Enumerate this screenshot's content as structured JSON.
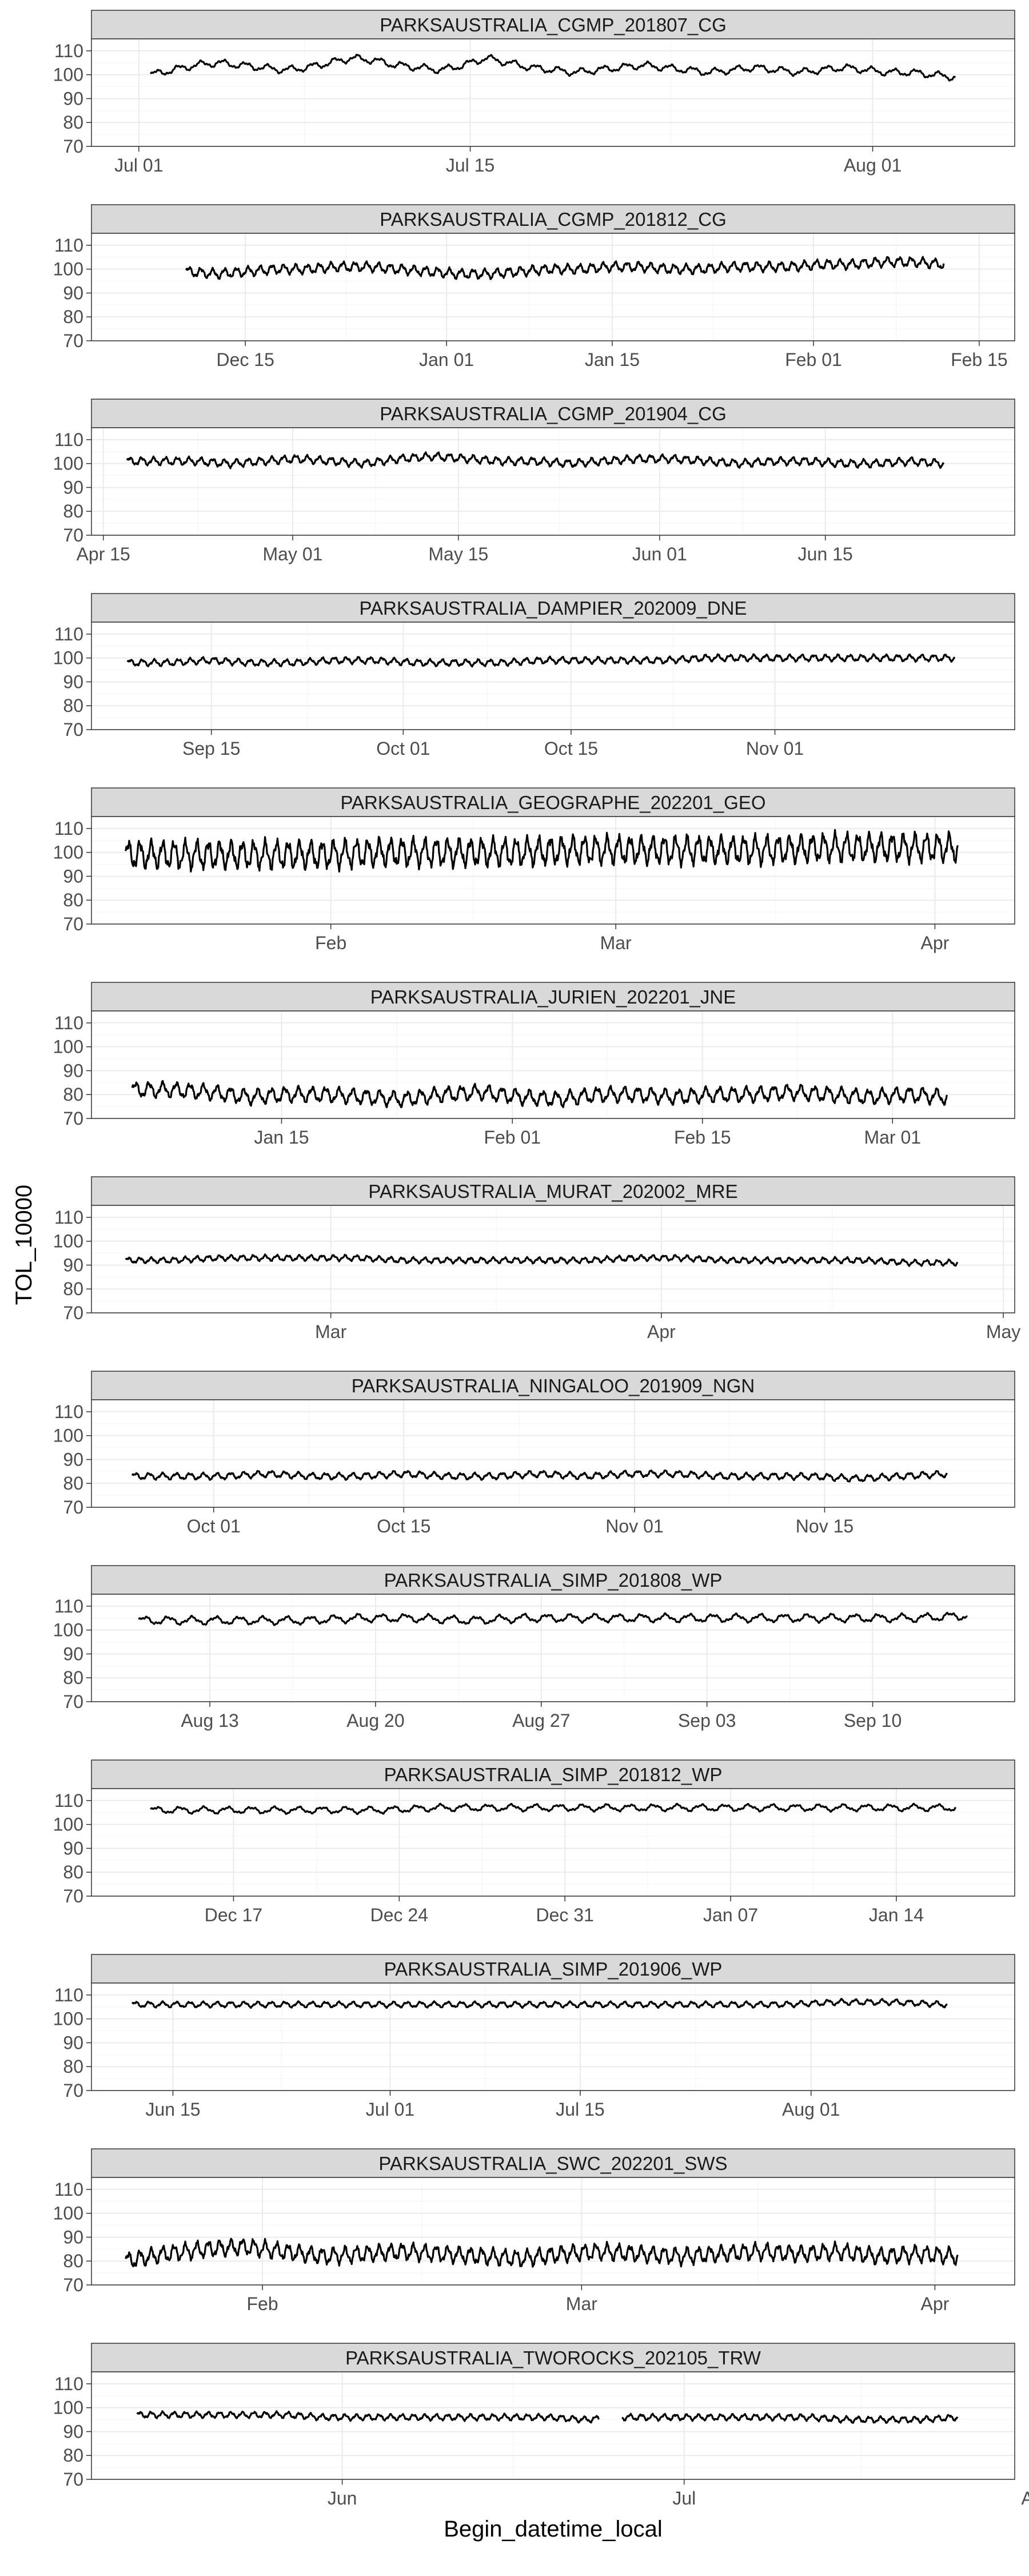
{
  "figure": {
    "ylabel": "TOL_10000",
    "xlabel": "Begin_datetime_local",
    "ylim": [
      70,
      115
    ],
    "yticks": [
      70,
      80,
      90,
      100,
      110
    ],
    "line_color": "#000000",
    "strip_fill": "#d9d9d9",
    "panel_border": "#333333",
    "grid_major": "#ebebeb",
    "grid_minor": "#f5f5f5",
    "tick_label_color": "#4d4d4d"
  },
  "chart_data": [
    {
      "type": "line",
      "title": "PARKSAUSTRALIA_CGMP_201807_CG",
      "xlim": [
        0,
        39
      ],
      "x_start": 2.5,
      "x_end": 36.5,
      "xticks": [
        {
          "x": 2,
          "label": "Jul 01"
        },
        {
          "x": 16,
          "label": "Jul 15"
        },
        {
          "x": 33,
          "label": "Aug 01"
        }
      ],
      "y": [
        100,
        102,
        104,
        105,
        104,
        103,
        102,
        103,
        105,
        107,
        106,
        104,
        103,
        102,
        104,
        107,
        105,
        103,
        102,
        101,
        102,
        103,
        104,
        103,
        102,
        101,
        102,
        103,
        102,
        101,
        102,
        103,
        102,
        101,
        101,
        100,
        99
      ],
      "amp": 1.6,
      "cycles": 36
    },
    {
      "type": "line",
      "title": "PARKSAUSTRALIA_CGMP_201812_CG",
      "xlim": [
        0,
        78
      ],
      "x_start": 8,
      "x_end": 72,
      "xticks": [
        {
          "x": 13,
          "label": "Dec 15"
        },
        {
          "x": 30,
          "label": "Jan 01"
        },
        {
          "x": 44,
          "label": "Jan 15"
        },
        {
          "x": 61,
          "label": "Feb 01"
        },
        {
          "x": 75,
          "label": "Feb 15"
        }
      ],
      "y": [
        99,
        98,
        99,
        100,
        100,
        101,
        101,
        100,
        99,
        98,
        98,
        99,
        100,
        100,
        101,
        101,
        100,
        100,
        101,
        101,
        101,
        102,
        102,
        103,
        103,
        102
      ],
      "amp": 2.2,
      "cycles": 64
    },
    {
      "type": "line",
      "title": "PARKSAUSTRALIA_CGMP_201904_CG",
      "xlim": [
        0,
        78
      ],
      "x_start": 3,
      "x_end": 72,
      "xticks": [
        {
          "x": 1,
          "label": "Apr 15"
        },
        {
          "x": 17,
          "label": "May 01"
        },
        {
          "x": 31,
          "label": "May 15"
        },
        {
          "x": 48,
          "label": "Jun 01"
        },
        {
          "x": 62,
          "label": "Jun 15"
        }
      ],
      "y": [
        101,
        101,
        101,
        100,
        101,
        102,
        101,
        100,
        102,
        103,
        102,
        101,
        101,
        100,
        101,
        102,
        102,
        101,
        100,
        101,
        101,
        100,
        100,
        101,
        100
      ],
      "amp": 1.8,
      "cycles": 69
    },
    {
      "type": "line",
      "title": "PARKSAUSTRALIA_DAMPIER_202009_DNE",
      "xlim": [
        0,
        77
      ],
      "x_start": 3,
      "x_end": 72,
      "xticks": [
        {
          "x": 10,
          "label": "Sep 15"
        },
        {
          "x": 26,
          "label": "Oct 01"
        },
        {
          "x": 40,
          "label": "Oct 15"
        },
        {
          "x": 57,
          "label": "Nov 01"
        }
      ],
      "y": [
        98,
        98,
        99,
        98,
        98,
        99,
        99,
        98,
        98,
        98,
        99,
        99,
        99,
        99,
        100,
        100,
        100,
        100,
        100,
        100,
        100
      ],
      "amp": 1.5,
      "cycles": 69
    },
    {
      "type": "line",
      "title": "PARKSAUSTRALIA_GEOGRAPHE_202201_GEO",
      "xlim": [
        0,
        81
      ],
      "x_start": 3,
      "x_end": 76,
      "xticks": [
        {
          "x": 21,
          "label": "Feb"
        },
        {
          "x": 46,
          "label": "Mar"
        },
        {
          "x": 74,
          "label": "Apr"
        }
      ],
      "y": [
        99,
        99,
        99,
        99,
        100,
        100,
        100,
        101,
        101,
        101,
        101,
        102,
        102,
        102
      ],
      "amp": 6.5,
      "cycles": 73
    },
    {
      "type": "line",
      "title": "PARKSAUSTRALIA_JURIEN_202201_JNE",
      "xlim": [
        0,
        68
      ],
      "x_start": 3,
      "x_end": 63,
      "xticks": [
        {
          "x": 14,
          "label": "Jan 15"
        },
        {
          "x": 31,
          "label": "Feb 01"
        },
        {
          "x": 45,
          "label": "Feb 15"
        },
        {
          "x": 59,
          "label": "Mar 01"
        }
      ],
      "y": [
        82,
        82,
        81,
        79,
        80,
        80,
        79,
        78,
        80,
        81,
        79,
        78,
        80,
        80,
        79,
        80,
        80,
        81,
        80,
        79,
        80,
        79
      ],
      "amp": 3.5,
      "cycles": 60
    },
    {
      "type": "line",
      "title": "PARKSAUSTRALIA_MURAT_202002_MRE",
      "xlim": [
        0,
        81
      ],
      "x_start": 3,
      "x_end": 76,
      "xticks": [
        {
          "x": 21,
          "label": "Mar"
        },
        {
          "x": 50,
          "label": "Apr"
        },
        {
          "x": 80,
          "label": "May"
        }
      ],
      "y": [
        92,
        92,
        93,
        93,
        93,
        93,
        92,
        92,
        92,
        92,
        92,
        93,
        93,
        92,
        92,
        92,
        92,
        91,
        91
      ],
      "amp": 1.3,
      "cycles": 73
    },
    {
      "type": "line",
      "title": "PARKSAUSTRALIA_NINGALOO_201909_NGN",
      "xlim": [
        0,
        68
      ],
      "x_start": 3,
      "x_end": 63,
      "xticks": [
        {
          "x": 9,
          "label": "Oct 01"
        },
        {
          "x": 23,
          "label": "Oct 15"
        },
        {
          "x": 40,
          "label": "Nov 01"
        },
        {
          "x": 54,
          "label": "Nov 15"
        }
      ],
      "y": [
        83,
        83,
        83,
        84,
        83,
        83,
        84,
        83,
        83,
        84,
        83,
        84,
        84,
        83,
        83,
        83,
        82,
        83,
        84
      ],
      "amp": 1.5,
      "cycles": 60
    },
    {
      "type": "line",
      "title": "PARKSAUSTRALIA_SIMP_201808_WP",
      "xlim": [
        0,
        39
      ],
      "x_start": 2,
      "x_end": 37,
      "xticks": [
        {
          "x": 5,
          "label": "Aug 13"
        },
        {
          "x": 12,
          "label": "Aug 20"
        },
        {
          "x": 19,
          "label": "Aug 27"
        },
        {
          "x": 26,
          "label": "Sep 03"
        },
        {
          "x": 33,
          "label": "Sep 10"
        }
      ],
      "y": [
        104,
        104,
        104,
        104,
        105,
        105,
        104,
        105,
        105,
        105,
        105,
        105,
        105,
        105,
        105,
        106
      ],
      "amp": 1.8,
      "cycles": 35
    },
    {
      "type": "line",
      "title": "PARKSAUSTRALIA_SIMP_201812_WP",
      "xlim": [
        0,
        39
      ],
      "x_start": 2.5,
      "x_end": 36.5,
      "xticks": [
        {
          "x": 6,
          "label": "Dec 17"
        },
        {
          "x": 13,
          "label": "Dec 24"
        },
        {
          "x": 20,
          "label": "Dec 31"
        },
        {
          "x": 27,
          "label": "Jan 07"
        },
        {
          "x": 34,
          "label": "Jan 14"
        }
      ],
      "y": [
        106,
        106,
        106,
        106,
        106,
        107,
        107,
        107,
        107,
        107,
        107,
        107,
        107,
        107,
        107
      ],
      "amp": 1.5,
      "cycles": 34
    },
    {
      "type": "line",
      "title": "PARKSAUSTRALIA_SIMP_201906_WP",
      "xlim": [
        0,
        68
      ],
      "x_start": 3,
      "x_end": 63,
      "xticks": [
        {
          "x": 6,
          "label": "Jun 15"
        },
        {
          "x": 22,
          "label": "Jul 01"
        },
        {
          "x": 36,
          "label": "Jul 15"
        },
        {
          "x": 53,
          "label": "Aug 01"
        }
      ],
      "y": [
        106,
        106,
        106,
        106,
        106,
        106,
        106,
        106,
        106,
        106,
        106,
        106,
        106,
        107,
        107,
        106
      ],
      "amp": 1.3,
      "cycles": 60
    },
    {
      "type": "line",
      "title": "PARKSAUSTRALIA_SWC_202201_SWS",
      "xlim": [
        0,
        81
      ],
      "x_start": 3,
      "x_end": 76,
      "xticks": [
        {
          "x": 15,
          "label": "Feb"
        },
        {
          "x": 43,
          "label": "Mar"
        },
        {
          "x": 74,
          "label": "Apr"
        }
      ],
      "y": [
        80,
        83,
        85,
        86,
        84,
        82,
        83,
        84,
        83,
        82,
        81,
        83,
        84,
        83,
        82,
        83,
        84,
        83,
        84,
        82,
        83,
        82
      ],
      "amp": 3.8,
      "cycles": 73
    },
    {
      "type": "line",
      "title": "PARKSAUSTRALIA_TWOROCKS_202105_TRW",
      "xlim": [
        0,
        81
      ],
      "x_start": 4,
      "x_end": 76,
      "xticks": [
        {
          "x": 22,
          "label": "Jun"
        },
        {
          "x": 52,
          "label": "Jul"
        },
        {
          "x": 83,
          "label": "Aug"
        }
      ],
      "gap": [
        44.5,
        46.5
      ],
      "y": [
        97,
        97,
        97,
        97,
        97,
        96,
        96,
        96,
        96,
        96,
        96,
        96,
        95,
        96,
        96,
        96,
        96,
        96,
        96,
        95,
        95,
        95,
        96
      ],
      "amp": 1.4,
      "cycles": 72
    }
  ]
}
